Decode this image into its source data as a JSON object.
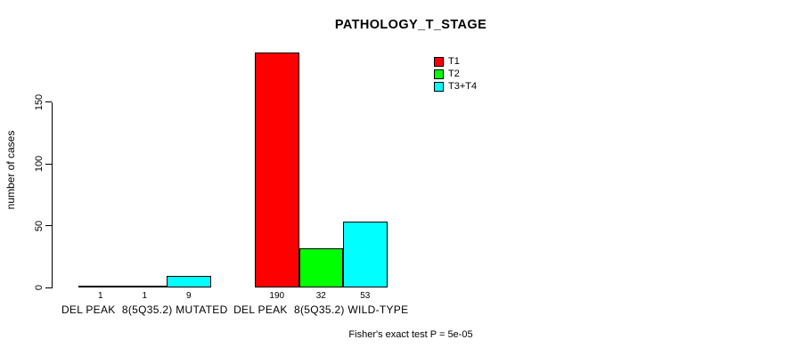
{
  "chart_data": {
    "type": "bar",
    "title": "PATHOLOGY_T_STAGE",
    "ylabel": "number of cases",
    "xlabel": "",
    "categories": [
      "DEL PEAK  8(5Q35.2) MUTATED",
      "DEL PEAK  8(5Q35.2) WILD-TYPE"
    ],
    "series": [
      {
        "name": "T1",
        "color": "#ff0000",
        "values": [
          1,
          190
        ]
      },
      {
        "name": "T2",
        "color": "#00ff00",
        "values": [
          1,
          32
        ]
      },
      {
        "name": "T3+T4",
        "color": "#00ffff",
        "values": [
          9,
          53
        ]
      }
    ],
    "bar_value_labels": [
      [
        1,
        1,
        9
      ],
      [
        190,
        32,
        53
      ]
    ],
    "yticks": [
      0,
      50,
      100,
      150
    ],
    "ylim": [
      0,
      190
    ],
    "grid": false,
    "bar_border_color": "#000000",
    "background_color": "#ffffff",
    "legend_position": "top-right",
    "annotation": "Fisher's exact test P = 5e-05"
  }
}
